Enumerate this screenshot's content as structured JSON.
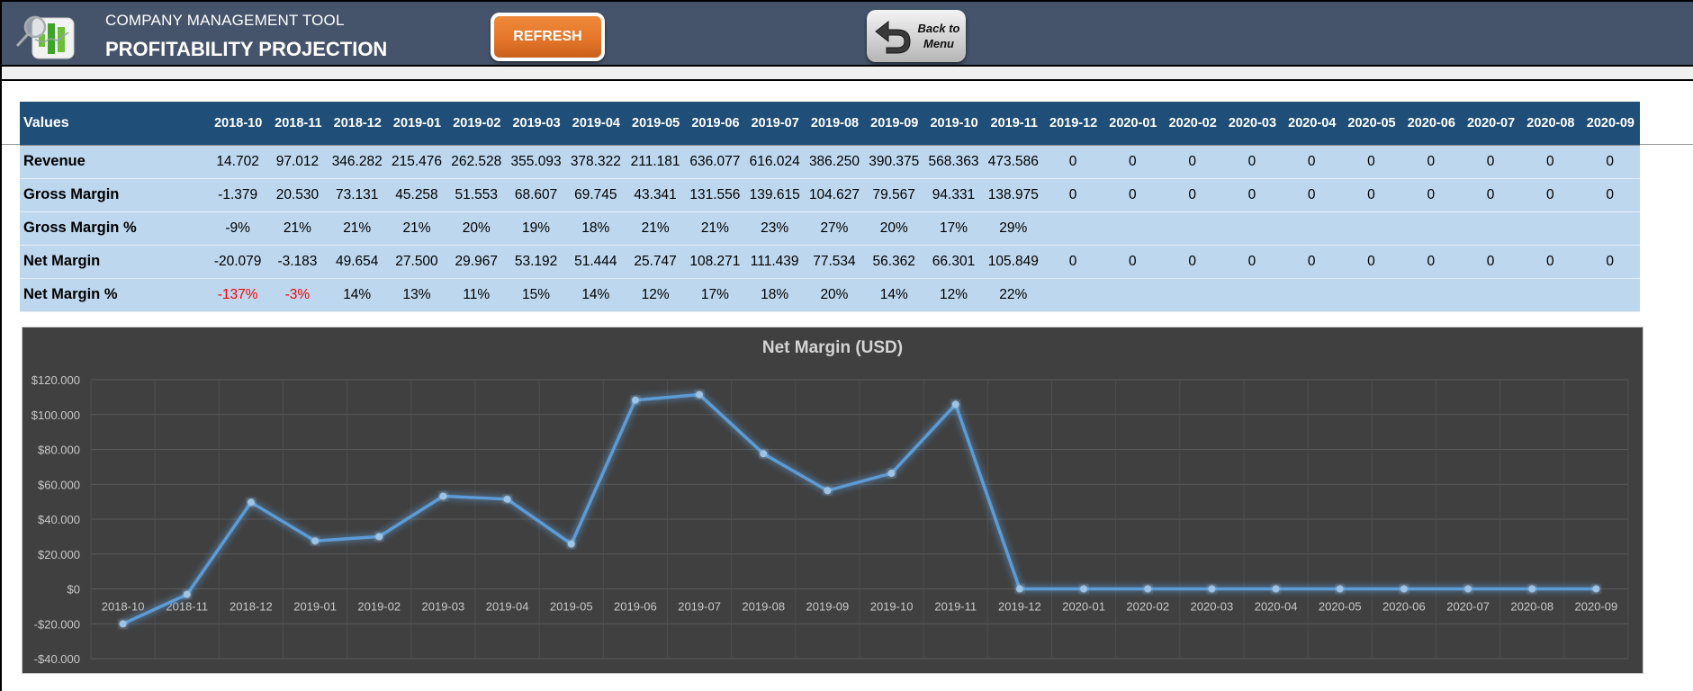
{
  "header": {
    "app_subtitle": "COMPANY MANAGEMENT TOOL",
    "page_title": "PROFITABILITY PROJECTION",
    "refresh_label": "REFRESH",
    "back_label": "Back to\nMenu",
    "logo_icon": "chart-magnifier-logo-icon",
    "back_icon": "return-arrow-icon"
  },
  "colors": {
    "topbar": "#46546b",
    "refresh": "#e27428",
    "table_header": "#1f4e78",
    "table_row": "#bdd7ee",
    "negative": "#ff0000",
    "chart_bg": "#404040",
    "chart_line": "#5b9bd5"
  },
  "table": {
    "header_label": "Values",
    "columns": [
      "2018-10",
      "2018-11",
      "2018-12",
      "2019-01",
      "2019-02",
      "2019-03",
      "2019-04",
      "2019-05",
      "2019-06",
      "2019-07",
      "2019-08",
      "2019-09",
      "2019-10",
      "2019-11",
      "2019-12",
      "2020-01",
      "2020-02",
      "2020-03",
      "2020-04",
      "2020-05",
      "2020-06",
      "2020-07",
      "2020-08",
      "2020-09"
    ],
    "rows": [
      {
        "label": "Revenue",
        "values": [
          "14.702",
          "97.012",
          "346.282",
          "215.476",
          "262.528",
          "355.093",
          "378.322",
          "211.181",
          "636.077",
          "616.024",
          "386.250",
          "390.375",
          "568.363",
          "473.586",
          "0",
          "0",
          "0",
          "0",
          "0",
          "0",
          "0",
          "0",
          "0",
          "0"
        ]
      },
      {
        "label": "Gross Margin",
        "values": [
          "-1.379",
          "20.530",
          "73.131",
          "45.258",
          "51.553",
          "68.607",
          "69.745",
          "43.341",
          "131.556",
          "139.615",
          "104.627",
          "79.567",
          "94.331",
          "138.975",
          "0",
          "0",
          "0",
          "0",
          "0",
          "0",
          "0",
          "0",
          "0",
          "0"
        ]
      },
      {
        "label": "Gross Margin %",
        "values": [
          "-9%",
          "21%",
          "21%",
          "21%",
          "20%",
          "19%",
          "18%",
          "21%",
          "21%",
          "23%",
          "27%",
          "20%",
          "17%",
          "29%",
          "",
          "",
          "",
          "",
          "",
          "",
          "",
          "",
          "",
          ""
        ]
      },
      {
        "label": "Net Margin",
        "values": [
          "-20.079",
          "-3.183",
          "49.654",
          "27.500",
          "29.967",
          "53.192",
          "51.444",
          "25.747",
          "108.271",
          "111.439",
          "77.534",
          "56.362",
          "66.301",
          "105.849",
          "0",
          "0",
          "0",
          "0",
          "0",
          "0",
          "0",
          "0",
          "0",
          "0"
        ]
      },
      {
        "label": "Net Margin %",
        "values": [
          "-137%",
          "-3%",
          "14%",
          "13%",
          "11%",
          "15%",
          "14%",
          "12%",
          "17%",
          "18%",
          "20%",
          "14%",
          "12%",
          "22%",
          "",
          "",
          "",
          "",
          "",
          "",
          "",
          "",
          "",
          ""
        ],
        "negative_indices": [
          0,
          1
        ]
      }
    ]
  },
  "chart_data": {
    "type": "line",
    "title": "Net Margin (USD)",
    "xlabel": "",
    "ylabel": "",
    "categories": [
      "2018-10",
      "2018-11",
      "2018-12",
      "2019-01",
      "2019-02",
      "2019-03",
      "2019-04",
      "2019-05",
      "2019-06",
      "2019-07",
      "2019-08",
      "2019-09",
      "2019-10",
      "2019-11",
      "2019-12",
      "2020-01",
      "2020-02",
      "2020-03",
      "2020-04",
      "2020-05",
      "2020-06",
      "2020-07",
      "2020-08",
      "2020-09"
    ],
    "series": [
      {
        "name": "Net Margin",
        "values": [
          -20079,
          -3183,
          49654,
          27500,
          29967,
          53192,
          51444,
          25747,
          108271,
          111439,
          77534,
          56362,
          66301,
          105849,
          0,
          0,
          0,
          0,
          0,
          0,
          0,
          0,
          0,
          0
        ]
      }
    ],
    "ylim": [
      -40000,
      120000
    ],
    "yticks": [
      -40000,
      -20000,
      0,
      20000,
      40000,
      60000,
      80000,
      100000,
      120000
    ],
    "ytick_labels": [
      "-$40.000",
      "-$20.000",
      "$0",
      "$20.000",
      "$40.000",
      "$60.000",
      "$80.000",
      "$100.000",
      "$120.000"
    ],
    "grid": true,
    "legend": "none"
  }
}
